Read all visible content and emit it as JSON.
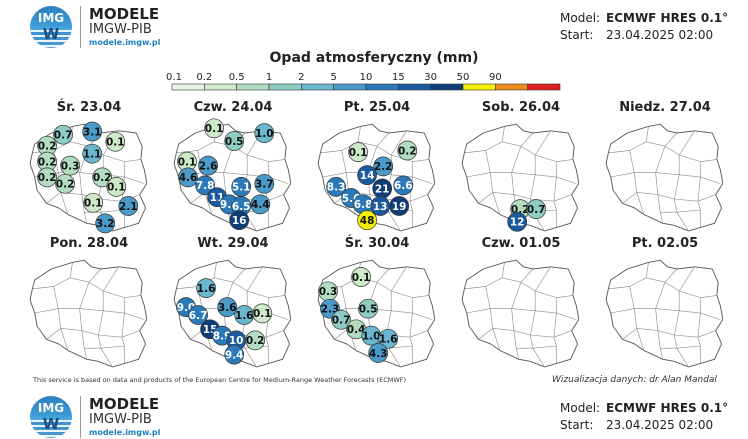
{
  "header": {
    "brand": {
      "logo_top": "IMG",
      "logo_bottom": "W",
      "name": "MODELE",
      "org": "IMGW-PIB",
      "url": "modele.imgw.pl"
    },
    "model_label": "Model:",
    "model_value": "ECMWF HRES 0.1°",
    "start_label": "Start:",
    "start_value": "23.04.2025 02:00"
  },
  "title": "Opad atmosferyczny (mm)",
  "legend": {
    "ticks": [
      "0.1",
      "0.2",
      "0.5",
      "1",
      "2",
      "5",
      "10",
      "15",
      "30",
      "50",
      "90"
    ],
    "colors": [
      "#e6f5e2",
      "#cfeac8",
      "#b3ddc0",
      "#8fcdc4",
      "#69b8cf",
      "#4a9bc9",
      "#2b79b8",
      "#1a5a9e",
      "#0f3d78",
      "#f5f000",
      "#f08c1e",
      "#e02020"
    ]
  },
  "footer": {
    "credit": "This service is based on data and products of the European Centre for Medium-Range Weather Forecasts (ECMWF)",
    "author": "Wizualizacja danych: dr Alan Mandal"
  },
  "panels": [
    {
      "title": "Śr. 23.04",
      "markers": [
        {
          "v": "0.7",
          "x": 0.33,
          "y": 0.16
        },
        {
          "v": "3.1",
          "x": 0.62,
          "y": 0.12
        },
        {
          "v": "0.1",
          "x": 0.85,
          "y": 0.25
        },
        {
          "v": "0.2",
          "x": 0.17,
          "y": 0.3
        },
        {
          "v": "1.1",
          "x": 0.62,
          "y": 0.4
        },
        {
          "v": "0.2",
          "x": 0.17,
          "y": 0.5
        },
        {
          "v": "0.3",
          "x": 0.4,
          "y": 0.55
        },
        {
          "v": "0.2",
          "x": 0.17,
          "y": 0.7
        },
        {
          "v": "0.2",
          "x": 0.72,
          "y": 0.7
        },
        {
          "v": "0.2",
          "x": 0.35,
          "y": 0.78
        },
        {
          "v": "0.1",
          "x": 0.86,
          "y": 0.82
        },
        {
          "v": "0.1",
          "x": 0.63,
          "y": 1.02
        },
        {
          "v": "2.1",
          "x": 0.98,
          "y": 1.06
        },
        {
          "v": "3.2",
          "x": 0.75,
          "y": 1.28
        }
      ]
    },
    {
      "title": "Czw. 24.04",
      "markers": [
        {
          "v": "0.1",
          "x": 0.4,
          "y": 0.08
        },
        {
          "v": "1.0",
          "x": 0.9,
          "y": 0.14
        },
        {
          "v": "0.5",
          "x": 0.6,
          "y": 0.24
        },
        {
          "v": "2.6",
          "x": 0.34,
          "y": 0.55
        },
        {
          "v": "0.1",
          "x": 0.13,
          "y": 0.5
        },
        {
          "v": "4.6",
          "x": 0.14,
          "y": 0.7
        },
        {
          "v": "7.8",
          "x": 0.31,
          "y": 0.8
        },
        {
          "v": "5.1",
          "x": 0.67,
          "y": 0.82
        },
        {
          "v": "3.7",
          "x": 0.9,
          "y": 0.78
        },
        {
          "v": "11",
          "x": 0.43,
          "y": 0.95
        },
        {
          "v": "9.8",
          "x": 0.55,
          "y": 1.04
        },
        {
          "v": "6.5",
          "x": 0.67,
          "y": 1.06
        },
        {
          "v": "4.4",
          "x": 0.86,
          "y": 1.04
        },
        {
          "v": "16",
          "x": 0.65,
          "y": 1.24
        }
      ]
    },
    {
      "title": "Pt. 25.04",
      "markers": [
        {
          "v": "0.1",
          "x": 0.4,
          "y": 0.38
        },
        {
          "v": "0.2",
          "x": 0.89,
          "y": 0.36
        },
        {
          "v": "2.2",
          "x": 0.65,
          "y": 0.56
        },
        {
          "v": "14",
          "x": 0.49,
          "y": 0.67
        },
        {
          "v": "8.3",
          "x": 0.18,
          "y": 0.82
        },
        {
          "v": "21",
          "x": 0.64,
          "y": 0.84
        },
        {
          "v": "6.6",
          "x": 0.85,
          "y": 0.8
        },
        {
          "v": "5.6",
          "x": 0.33,
          "y": 0.96
        },
        {
          "v": "6.8",
          "x": 0.45,
          "y": 1.04
        },
        {
          "v": "13",
          "x": 0.62,
          "y": 1.06
        },
        {
          "v": "19",
          "x": 0.81,
          "y": 1.06
        },
        {
          "v": "48",
          "x": 0.49,
          "y": 1.24
        }
      ]
    },
    {
      "title": "Sob. 26.04",
      "markers": [
        {
          "v": "0.2",
          "x": 0.58,
          "y": 1.1
        },
        {
          "v": "0.7",
          "x": 0.74,
          "y": 1.1
        },
        {
          "v": "12",
          "x": 0.55,
          "y": 1.26
        }
      ]
    },
    {
      "title": "Niedz. 27.04",
      "markers": []
    },
    {
      "title": "Pon. 28.04",
      "markers": []
    },
    {
      "title": "Wt. 29.04",
      "markers": [
        {
          "v": "1.6",
          "x": 0.32,
          "y": 0.38
        },
        {
          "v": "9.0",
          "x": 0.12,
          "y": 0.62
        },
        {
          "v": "3.6",
          "x": 0.53,
          "y": 0.62
        },
        {
          "v": "6.7",
          "x": 0.24,
          "y": 0.72
        },
        {
          "v": "1.6",
          "x": 0.7,
          "y": 0.72
        },
        {
          "v": "0.1",
          "x": 0.88,
          "y": 0.7
        },
        {
          "v": "15",
          "x": 0.36,
          "y": 0.9
        },
        {
          "v": "8.9",
          "x": 0.48,
          "y": 0.98
        },
        {
          "v": "10",
          "x": 0.62,
          "y": 1.04
        },
        {
          "v": "0.2",
          "x": 0.81,
          "y": 1.04
        },
        {
          "v": "9.4",
          "x": 0.6,
          "y": 1.22
        }
      ]
    },
    {
      "title": "Śr. 30.04",
      "markers": [
        {
          "v": "0.1",
          "x": 0.43,
          "y": 0.24
        },
        {
          "v": "0.3",
          "x": 0.1,
          "y": 0.42
        },
        {
          "v": "2.3",
          "x": 0.12,
          "y": 0.64
        },
        {
          "v": "0.5",
          "x": 0.5,
          "y": 0.64
        },
        {
          "v": "0.7",
          "x": 0.23,
          "y": 0.78
        },
        {
          "v": "0.4",
          "x": 0.38,
          "y": 0.9
        },
        {
          "v": "1.0",
          "x": 0.53,
          "y": 0.98
        },
        {
          "v": "1.6",
          "x": 0.7,
          "y": 1.02
        },
        {
          "v": "4.3",
          "x": 0.6,
          "y": 1.2
        }
      ]
    },
    {
      "title": "Czw. 01.05",
      "markers": []
    },
    {
      "title": "Pt. 02.05",
      "markers": []
    }
  ]
}
